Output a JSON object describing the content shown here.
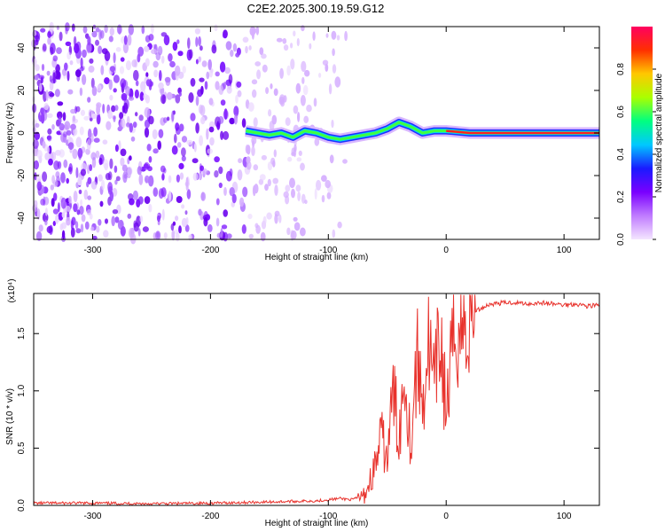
{
  "title": "C2E2.2025.300.19.59.G12",
  "chart_data": [
    {
      "type": "heatmap",
      "xlabel": "Height of straight line (km)",
      "ylabel": "Frequency (Hz)",
      "xlim": [
        -350,
        130
      ],
      "ylim": [
        -50,
        50
      ],
      "x_ticks": [
        -300,
        -200,
        -100,
        0,
        100
      ],
      "y_ticks": [
        -40,
        -20,
        0,
        20,
        40
      ],
      "colorbar": {
        "label": "Normalized spectral amplitude",
        "range": [
          0,
          1
        ],
        "ticks": [
          "0.0",
          "0.2",
          "0.4",
          "0.6",
          "0.8"
        ],
        "colors": [
          "#f4e6ff",
          "#c07cff",
          "#7a00ff",
          "#1a1aff",
          "#00c8ff",
          "#00ff80",
          "#aaff00",
          "#ffc800",
          "#ff3000",
          "#ff0060"
        ]
      },
      "ridge": {
        "x": [
          -170,
          -160,
          -150,
          -140,
          -130,
          -120,
          -110,
          -100,
          -90,
          -80,
          -70,
          -60,
          -50,
          -40,
          -30,
          -20,
          -10,
          0,
          20,
          40,
          60,
          80,
          100,
          120,
          130
        ],
        "y": [
          1,
          0,
          -1,
          0,
          -2,
          1,
          0,
          -2,
          -3,
          -2,
          -1,
          0,
          2,
          5,
          3,
          0,
          1,
          1,
          0,
          0,
          0,
          0,
          0,
          0,
          0
        ]
      }
    },
    {
      "type": "line",
      "xlabel": "Height of straight line (km)",
      "ylabel": "SNR (10 * v/v)",
      "y_multiplier": "(x10⁴)",
      "xlim": [
        -350,
        130
      ],
      "ylim": [
        0,
        1.85
      ],
      "x_ticks": [
        -300,
        -200,
        -100,
        0,
        100
      ],
      "y_ticks": [
        "0.0",
        "0.5",
        "1.0",
        "1.5"
      ],
      "series": [
        {
          "color": "#e8322c",
          "x": [
            -350,
            -300,
            -250,
            -200,
            -150,
            -110,
            -90,
            -80,
            -70,
            -65,
            -60,
            -55,
            -50,
            -45,
            -40,
            -35,
            -30,
            -25,
            -20,
            -15,
            -10,
            -5,
            0,
            5,
            10,
            15,
            20,
            25,
            30,
            35,
            40,
            50,
            60,
            70,
            80,
            90,
            100,
            110,
            120,
            130
          ],
          "values": [
            0.02,
            0.02,
            0.015,
            0.02,
            0.03,
            0.04,
            0.06,
            0.05,
            0.08,
            0.2,
            0.35,
            0.6,
            0.4,
            1.0,
            0.6,
            1.2,
            0.5,
            1.3,
            0.9,
            1.4,
            1.0,
            1.5,
            0.8,
            1.3,
            1.6,
            1.5,
            1.65,
            1.7,
            1.72,
            1.75,
            1.76,
            1.77,
            1.77,
            1.76,
            1.77,
            1.76,
            1.75,
            1.76,
            1.74,
            1.75
          ]
        }
      ]
    }
  ]
}
